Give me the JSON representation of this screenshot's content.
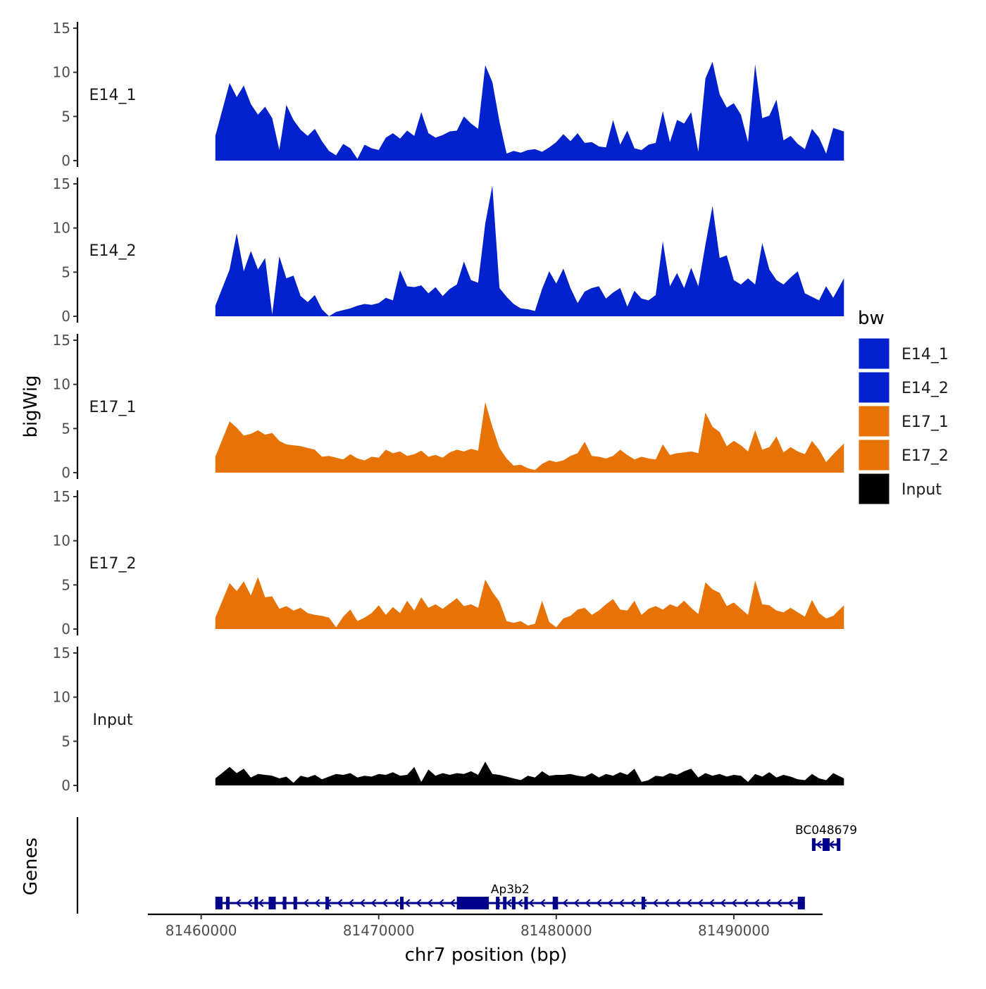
{
  "chart_data": {
    "type": "area",
    "chromosome": "chr7",
    "xlabel": "chr7 position (bp)",
    "ylabel": "bigWig",
    "genes_label": "Genes",
    "xlim": [
      81457000,
      81495000
    ],
    "x_ticks": [
      81460000,
      81470000,
      81480000,
      81490000
    ],
    "y_ticks": [
      0,
      5,
      10,
      15
    ],
    "ylim": [
      0,
      15
    ],
    "region": [
      81460800,
      81496200
    ],
    "legend": {
      "title": "bw",
      "entries": [
        {
          "label": "E14_1",
          "color": "#0021CC"
        },
        {
          "label": "E14_2",
          "color": "#0021CC"
        },
        {
          "label": "E17_1",
          "color": "#E77306"
        },
        {
          "label": "E17_2",
          "color": "#E77306"
        },
        {
          "label": "Input",
          "color": "#000000"
        }
      ]
    },
    "series": [
      {
        "name": "E14_1",
        "color": "#0021CC",
        "x": [
          81460800,
          81461600,
          81462000,
          81462400,
          81462800,
          81463200,
          81463600,
          81464000,
          81464400,
          81464800,
          81465200,
          81465600,
          81466000,
          81466400,
          81466800,
          81467200,
          81467600,
          81468000,
          81468400,
          81468800,
          81469200,
          81469600,
          81470000,
          81470400,
          81470800,
          81471200,
          81471600,
          81472000,
          81472400,
          81472800,
          81473200,
          81473600,
          81474000,
          81474400,
          81474800,
          81475200,
          81475600,
          81476000,
          81476400,
          81476800,
          81477200,
          81477600,
          81478000,
          81478400,
          81478800,
          81479200,
          81479600,
          81480000,
          81480400,
          81480800,
          81481200,
          81481600,
          81482000,
          81482400,
          81482800,
          81483200,
          81483600,
          81484000,
          81484400,
          81484800,
          81485200,
          81485600,
          81486000,
          81486400,
          81486800,
          81487200,
          81487600,
          81488000,
          81488400,
          81488800,
          81489200,
          81489600,
          81490000,
          81490400,
          81490800,
          81491200,
          81491600,
          81492000,
          81492400,
          81492800,
          81493200,
          81493600,
          81494000,
          81494400,
          81494800,
          81495200,
          81495600,
          81496200
        ],
        "values": [
          2.8,
          8.8,
          7.2,
          8.5,
          6.4,
          5.2,
          6.1,
          4.8,
          1.2,
          6.3,
          4.6,
          3.5,
          2.8,
          3.6,
          2.2,
          1.1,
          0.6,
          1.9,
          1.4,
          0.2,
          1.8,
          1.4,
          1.2,
          2.6,
          3.1,
          2.5,
          3.4,
          2.8,
          5.5,
          3.1,
          2.6,
          2.9,
          3.3,
          3.4,
          5.0,
          4.2,
          3.6,
          10.8,
          8.9,
          4.4,
          0.8,
          1.1,
          0.9,
          1.2,
          1.3,
          1.0,
          1.5,
          2.1,
          3.0,
          2.2,
          3.1,
          2.0,
          2.1,
          1.6,
          1.5,
          4.6,
          1.8,
          3.4,
          1.4,
          1.2,
          1.8,
          2.0,
          5.6,
          2.1,
          4.6,
          4.2,
          5.5,
          1.0,
          9.3,
          11.2,
          7.5,
          6.0,
          6.5,
          5.2,
          2.1,
          10.9,
          4.8,
          5.1,
          6.9,
          2.3,
          2.8,
          1.9,
          1.3,
          3.6,
          2.6,
          0.8,
          3.7,
          3.3
        ]
      },
      {
        "name": "E14_2",
        "color": "#0021CC",
        "x": [
          81460800,
          81461600,
          81462000,
          81462400,
          81462800,
          81463200,
          81463600,
          81464000,
          81464400,
          81464800,
          81465200,
          81465600,
          81466000,
          81466400,
          81466800,
          81467200,
          81467600,
          81468000,
          81468400,
          81468800,
          81469200,
          81469600,
          81470000,
          81470400,
          81470800,
          81471200,
          81471600,
          81472000,
          81472400,
          81472800,
          81473200,
          81473600,
          81474000,
          81474400,
          81474800,
          81475200,
          81475600,
          81476000,
          81476400,
          81476800,
          81477200,
          81477600,
          81478000,
          81478400,
          81478800,
          81479200,
          81479600,
          81480000,
          81480400,
          81480800,
          81481200,
          81481600,
          81482000,
          81482400,
          81482800,
          81483200,
          81483600,
          81484000,
          81484400,
          81484800,
          81485200,
          81485600,
          81486000,
          81486400,
          81486800,
          81487200,
          81487600,
          81488000,
          81488400,
          81488800,
          81489200,
          81489600,
          81490000,
          81490400,
          81490800,
          81491200,
          81491600,
          81492000,
          81492400,
          81492800,
          81493200,
          81493600,
          81494000,
          81494400,
          81494800,
          81495200,
          81495600,
          81496200
        ],
        "values": [
          1.2,
          5.3,
          9.4,
          5.1,
          7.4,
          5.3,
          6.6,
          0.2,
          6.8,
          4.3,
          4.6,
          2.3,
          1.6,
          2.4,
          0.8,
          -0.2,
          0.5,
          0.7,
          0.9,
          1.2,
          1.4,
          1.3,
          1.5,
          2.1,
          1.8,
          5.2,
          3.4,
          3.3,
          3.5,
          2.6,
          3.3,
          2.3,
          3.1,
          3.6,
          6.2,
          4.1,
          3.8,
          10.5,
          14.8,
          3.2,
          2.2,
          1.4,
          0.9,
          0.8,
          0.6,
          3.1,
          5.1,
          3.7,
          5.4,
          3.2,
          1.5,
          2.8,
          3.2,
          3.4,
          2.0,
          2.7,
          3.2,
          1.1,
          2.9,
          2.0,
          1.8,
          2.4,
          8.5,
          3.4,
          4.9,
          3.2,
          5.5,
          3.4,
          8.1,
          12.5,
          6.6,
          6.9,
          4.1,
          3.6,
          4.3,
          3.6,
          8.3,
          5.3,
          4.1,
          3.6,
          4.4,
          5.1,
          2.6,
          2.2,
          1.8,
          3.4,
          2.1,
          4.3
        ]
      },
      {
        "name": "E17_1",
        "color": "#E77306",
        "x": [
          81460800,
          81461600,
          81462000,
          81462400,
          81462800,
          81463200,
          81463600,
          81464000,
          81464400,
          81464800,
          81465200,
          81465600,
          81466000,
          81466400,
          81466800,
          81467200,
          81467600,
          81468000,
          81468400,
          81468800,
          81469200,
          81469600,
          81470000,
          81470400,
          81470800,
          81471200,
          81471600,
          81472000,
          81472400,
          81472800,
          81473200,
          81473600,
          81474000,
          81474400,
          81474800,
          81475200,
          81475600,
          81476000,
          81476400,
          81476800,
          81477200,
          81477600,
          81478000,
          81478400,
          81478800,
          81479200,
          81479600,
          81480000,
          81480400,
          81480800,
          81481200,
          81481600,
          81482000,
          81482400,
          81482800,
          81483200,
          81483600,
          81484000,
          81484400,
          81484800,
          81485200,
          81485600,
          81486000,
          81486400,
          81486800,
          81487200,
          81487600,
          81488000,
          81488400,
          81488800,
          81489200,
          81489600,
          81490000,
          81490400,
          81490800,
          81491200,
          81491600,
          81492000,
          81492400,
          81492800,
          81493200,
          81493600,
          81494000,
          81494400,
          81494800,
          81495200,
          81495600,
          81496200
        ],
        "values": [
          1.8,
          5.8,
          5.1,
          4.2,
          4.4,
          4.8,
          4.3,
          4.5,
          3.6,
          3.2,
          3.1,
          3.0,
          2.8,
          2.6,
          1.8,
          1.9,
          1.7,
          1.5,
          2.1,
          1.6,
          1.4,
          1.8,
          1.7,
          2.6,
          2.2,
          2.4,
          1.9,
          2.1,
          2.5,
          1.8,
          2.0,
          1.7,
          2.3,
          2.6,
          2.4,
          2.7,
          2.5,
          8.0,
          5.2,
          2.8,
          1.6,
          0.8,
          0.9,
          0.5,
          0.3,
          1.0,
          1.4,
          1.2,
          1.4,
          1.9,
          2.2,
          3.5,
          1.9,
          1.8,
          1.6,
          1.9,
          2.6,
          2.0,
          1.5,
          1.8,
          1.6,
          1.5,
          3.2,
          2.0,
          2.2,
          2.3,
          2.4,
          2.2,
          6.8,
          5.2,
          4.6,
          3.0,
          3.6,
          3.1,
          2.4,
          4.8,
          2.6,
          2.9,
          4.1,
          2.3,
          2.9,
          2.4,
          2.1,
          3.6,
          2.6,
          1.2,
          2.1,
          3.3
        ]
      },
      {
        "name": "E17_2",
        "color": "#E77306",
        "x": [
          81460800,
          81461600,
          81462000,
          81462400,
          81462800,
          81463200,
          81463600,
          81464000,
          81464400,
          81464800,
          81465200,
          81465600,
          81466000,
          81466400,
          81466800,
          81467200,
          81467600,
          81468000,
          81468400,
          81468800,
          81469200,
          81469600,
          81470000,
          81470400,
          81470800,
          81471200,
          81471600,
          81472000,
          81472400,
          81472800,
          81473200,
          81473600,
          81474000,
          81474400,
          81474800,
          81475200,
          81475600,
          81476000,
          81476400,
          81476800,
          81477200,
          81477600,
          81478000,
          81478400,
          81478800,
          81479200,
          81479600,
          81480000,
          81480400,
          81480800,
          81481200,
          81481600,
          81482000,
          81482400,
          81482800,
          81483200,
          81483600,
          81484000,
          81484400,
          81484800,
          81485200,
          81485600,
          81486000,
          81486400,
          81486800,
          81487200,
          81487600,
          81488000,
          81488400,
          81488800,
          81489200,
          81489600,
          81490000,
          81490400,
          81490800,
          81491200,
          81491600,
          81492000,
          81492400,
          81492800,
          81493200,
          81493600,
          81494000,
          81494400,
          81494800,
          81495200,
          81495600,
          81496200
        ],
        "values": [
          1.3,
          5.2,
          4.3,
          5.4,
          3.8,
          5.9,
          3.6,
          3.7,
          2.3,
          2.6,
          2.1,
          2.4,
          1.8,
          1.6,
          1.5,
          1.3,
          0.2,
          1.4,
          2.2,
          0.9,
          1.3,
          1.8,
          2.7,
          1.6,
          2.5,
          1.8,
          3.2,
          2.1,
          3.6,
          2.4,
          2.8,
          2.3,
          2.9,
          3.5,
          2.6,
          2.8,
          2.4,
          5.6,
          4.2,
          3.1,
          0.9,
          0.7,
          0.9,
          0.4,
          0.6,
          3.2,
          0.8,
          0.2,
          1.2,
          1.5,
          2.2,
          2.4,
          1.6,
          2.1,
          2.8,
          3.4,
          2.2,
          2.1,
          3.2,
          1.6,
          2.3,
          2.6,
          2.2,
          2.8,
          2.5,
          3.2,
          2.4,
          1.7,
          5.3,
          4.5,
          4.1,
          2.6,
          3.0,
          2.3,
          1.6,
          5.5,
          2.8,
          2.7,
          2.1,
          1.9,
          2.4,
          1.9,
          1.4,
          3.3,
          1.8,
          1.2,
          1.5,
          2.7
        ]
      },
      {
        "name": "Input",
        "color": "#000000",
        "x": [
          81460800,
          81461600,
          81462000,
          81462400,
          81462800,
          81463200,
          81463600,
          81464000,
          81464400,
          81464800,
          81465200,
          81465600,
          81466000,
          81466400,
          81466800,
          81467200,
          81467600,
          81468000,
          81468400,
          81468800,
          81469200,
          81469600,
          81470000,
          81470400,
          81470800,
          81471200,
          81471600,
          81472000,
          81472400,
          81472800,
          81473200,
          81473600,
          81474000,
          81474400,
          81474800,
          81475200,
          81475600,
          81476000,
          81476400,
          81476800,
          81477200,
          81477600,
          81478000,
          81478400,
          81478800,
          81479200,
          81479600,
          81480000,
          81480400,
          81480800,
          81481200,
          81481600,
          81482000,
          81482400,
          81482800,
          81483200,
          81483600,
          81484000,
          81484400,
          81484800,
          81485200,
          81485600,
          81486000,
          81486400,
          81486800,
          81487200,
          81487600,
          81488000,
          81488400,
          81488800,
          81489200,
          81489600,
          81490000,
          81490400,
          81490800,
          81491200,
          81491600,
          81492000,
          81492400,
          81492800,
          81493200,
          81493600,
          81494000,
          81494400,
          81494800,
          81495200,
          81495600,
          81496200
        ],
        "values": [
          0.8,
          2.1,
          1.4,
          1.9,
          0.9,
          1.3,
          1.2,
          1.1,
          0.8,
          1.0,
          0.3,
          1.1,
          0.9,
          1.2,
          0.7,
          1.0,
          1.3,
          1.2,
          1.4,
          0.9,
          1.1,
          1.0,
          1.3,
          1.2,
          1.5,
          1.1,
          1.2,
          2.1,
          0.4,
          1.8,
          1.1,
          1.4,
          1.2,
          1.4,
          1.3,
          1.6,
          1.2,
          2.7,
          1.3,
          1.2,
          1.0,
          0.8,
          0.6,
          1.1,
          0.9,
          1.6,
          1.1,
          1.2,
          1.2,
          1.3,
          1.1,
          1.0,
          1.4,
          0.9,
          1.3,
          1.1,
          1.5,
          1.2,
          1.9,
          0.4,
          0.6,
          1.1,
          1.0,
          1.4,
          1.2,
          1.6,
          1.9,
          0.9,
          1.4,
          1.1,
          1.3,
          1.0,
          1.2,
          1.1,
          0.4,
          1.3,
          1.0,
          1.5,
          0.9,
          1.2,
          1.0,
          0.7,
          0.6,
          1.3,
          0.8,
          0.6,
          1.4,
          0.8
        ]
      }
    ],
    "genes": [
      {
        "name": "Ap3b2",
        "strand": "-",
        "start": 81460800,
        "end": 81494000,
        "exons": [
          [
            81460800,
            81461200
          ],
          [
            81461400,
            81461600
          ],
          [
            81463000,
            81463200
          ],
          [
            81463800,
            81464200
          ],
          [
            81464600,
            81464800
          ],
          [
            81465200,
            81465400
          ],
          [
            81467000,
            81467200
          ],
          [
            81471200,
            81471400
          ],
          [
            81474400,
            81476200
          ],
          [
            81476600,
            81476800
          ],
          [
            81477000,
            81477200
          ],
          [
            81477500,
            81477700
          ],
          [
            81478200,
            81478400
          ],
          [
            81479800,
            81480100
          ],
          [
            81484800,
            81485000
          ],
          [
            81493600,
            81494000
          ]
        ]
      },
      {
        "name": "BC048679",
        "strand": "-",
        "start": 81494400,
        "end": 81496000,
        "exons": [
          [
            81494400,
            81494600
          ],
          [
            81495000,
            81495400
          ],
          [
            81495800,
            81496000
          ]
        ]
      }
    ]
  }
}
